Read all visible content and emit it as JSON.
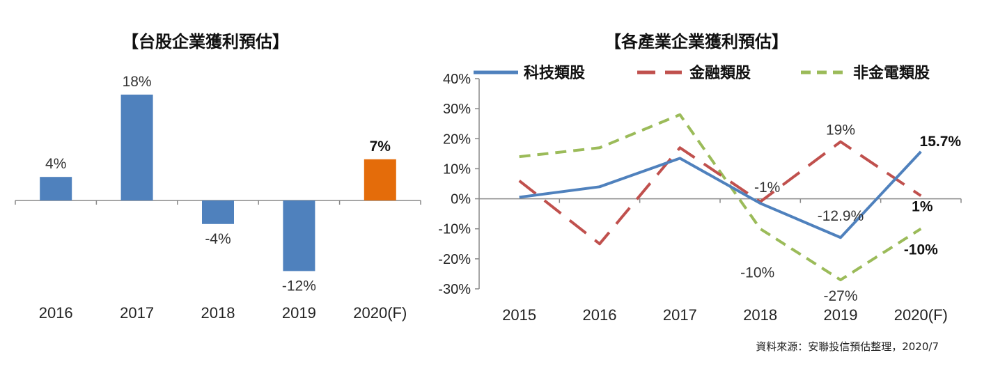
{
  "chart_data": [
    {
      "type": "bar",
      "title": "【台股企業獲利預估】",
      "categories": [
        "2016",
        "2017",
        "2018",
        "2019",
        "2020(F)"
      ],
      "values": [
        4,
        18,
        -4,
        -12,
        7
      ],
      "value_labels": [
        "4%",
        "18%",
        "-4%",
        "-12%",
        "7%"
      ],
      "highlight_index": 4,
      "colors": {
        "bar": "#4f81bd",
        "highlight": "#e46c0a"
      },
      "ylim": [
        -12,
        18
      ],
      "grid": false
    },
    {
      "type": "line",
      "title": "【各產業企業獲利預估】",
      "categories": [
        "2015",
        "2016",
        "2017",
        "2018",
        "2019",
        "2020(F)"
      ],
      "ylim": [
        -30,
        40
      ],
      "yticks": [
        40,
        30,
        20,
        10,
        0,
        -10,
        -20,
        -30
      ],
      "ytick_labels": [
        "40%",
        "30%",
        "20%",
        "10%",
        "0%",
        "-10%",
        "-20%",
        "-30%"
      ],
      "grid": false,
      "legend_position": "top",
      "series": [
        {
          "name": "科技類股",
          "color": "#4f81bd",
          "style": "solid",
          "values": [
            0.5,
            4,
            13.5,
            -1.5,
            -12.9,
            15.7
          ]
        },
        {
          "name": "金融類股",
          "color": "#c0504d",
          "style": "dashed",
          "values": [
            6,
            -15,
            17,
            -1,
            19,
            1
          ]
        },
        {
          "name": "非金電類股",
          "color": "#9bbb59",
          "style": "dashed",
          "values": [
            14,
            17,
            28,
            -10,
            -27,
            -10
          ]
        }
      ],
      "annotations": [
        {
          "text": "15.7%",
          "series": 0,
          "index": 5,
          "bold": true
        },
        {
          "text": "-12.9%",
          "series": 0,
          "index": 4,
          "bold": false
        },
        {
          "text": "19%",
          "series": 1,
          "index": 4,
          "bold": false
        },
        {
          "text": "-1%",
          "series": 1,
          "index": 3,
          "bold": false
        },
        {
          "text": "1%",
          "series": 1,
          "index": 5,
          "bold": true
        },
        {
          "text": "-10%",
          "series": 2,
          "index": 3,
          "bold": false
        },
        {
          "text": "-27%",
          "series": 2,
          "index": 4,
          "bold": false
        },
        {
          "text": "-10%",
          "series": 2,
          "index": 5,
          "bold": true
        }
      ]
    }
  ],
  "source_note": "資料來源：安聯投信預估整理，2020/7"
}
